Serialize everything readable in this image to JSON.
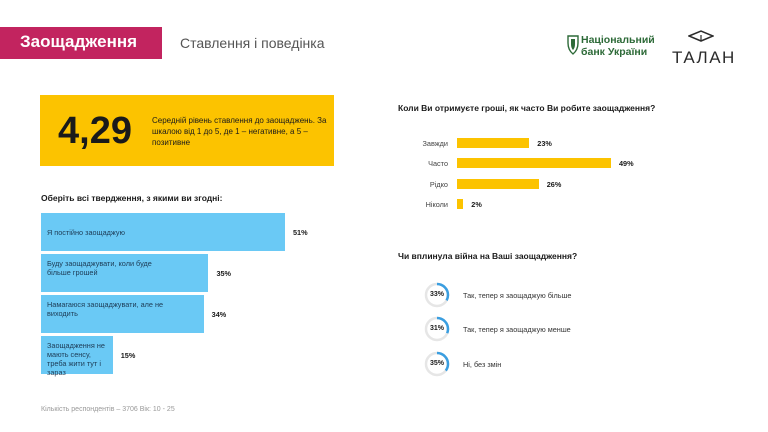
{
  "header": {
    "title": "Заощадження",
    "subtitle": "Ставлення і поведінка",
    "brand_color": "#c2245f"
  },
  "logos": {
    "nbu_line1": "Національний",
    "nbu_line2": "банк України",
    "talan": "ТАЛАН"
  },
  "score": {
    "value": "4,29",
    "description": "Середній рівень ставлення до заощаджень. За шкалою від 1 до 5,  де 1 – негативне, а 5 – позитивне"
  },
  "statements": {
    "label": "Оберіть всі твердження, з якими ви згодні:"
  },
  "frequency": {
    "label": "Коли Ви отримуєте гроші, як часто Ви робите заощадження?"
  },
  "war": {
    "label": "Чи вплинула війна на Ваші заощадження?"
  },
  "footnote": "Кількість респондентів – 3706     Вік: 10 - 25",
  "colors": {
    "statement_bar": "#6ac9f5",
    "frequency_bar": "#fcc300",
    "donut": "#3a9ee0",
    "donut_track": "#e6e6e6"
  },
  "chart_data": [
    {
      "type": "bar",
      "orientation": "horizontal",
      "title": "Оберіть всі твердження, з якими ви згодні:",
      "categories": [
        "Я постійно заощаджую",
        "Буду заощаджувати, коли буде більше грошей",
        "Намагаюся заощаджувати, але не виходить",
        "Заощадження не мають сенсу, треба жити тут і зараз"
      ],
      "values": [
        51,
        35,
        34,
        15
      ],
      "value_labels": [
        "51%",
        "35%",
        "34%",
        "15%"
      ],
      "unit": "%"
    },
    {
      "type": "bar",
      "orientation": "horizontal",
      "title": "Коли Ви отримуєте гроші, як часто Ви робите заощадження?",
      "categories": [
        "Завжди",
        "Часто",
        "Рідко",
        "Ніколи"
      ],
      "values": [
        23,
        49,
        26,
        2
      ],
      "value_labels": [
        "23%",
        "49%",
        "26%",
        "2%"
      ],
      "unit": "%"
    },
    {
      "type": "pie",
      "title": "Чи вплинула війна на Ваші заощадження?",
      "categories": [
        "Так, тепер я заощаджую більше",
        "Так, тепер я заощаджую менше",
        "Ні, без змін"
      ],
      "values": [
        33,
        31,
        35
      ],
      "value_labels": [
        "33%",
        "31%",
        "35%"
      ],
      "unit": "%"
    }
  ]
}
